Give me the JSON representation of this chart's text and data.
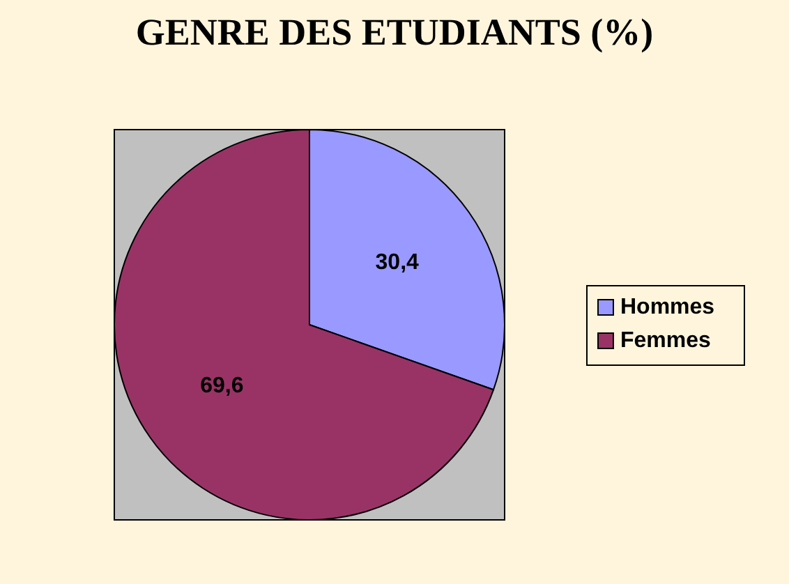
{
  "chart_data": {
    "type": "pie",
    "title": "GENRE DES ETUDIANTS (%)",
    "categories": [
      "Hommes",
      "Femmes"
    ],
    "values": [
      30.4,
      69.6
    ],
    "value_labels": [
      "30,4",
      "69,6"
    ],
    "colors": [
      "#9999ff",
      "#993366"
    ],
    "legend": "right"
  }
}
